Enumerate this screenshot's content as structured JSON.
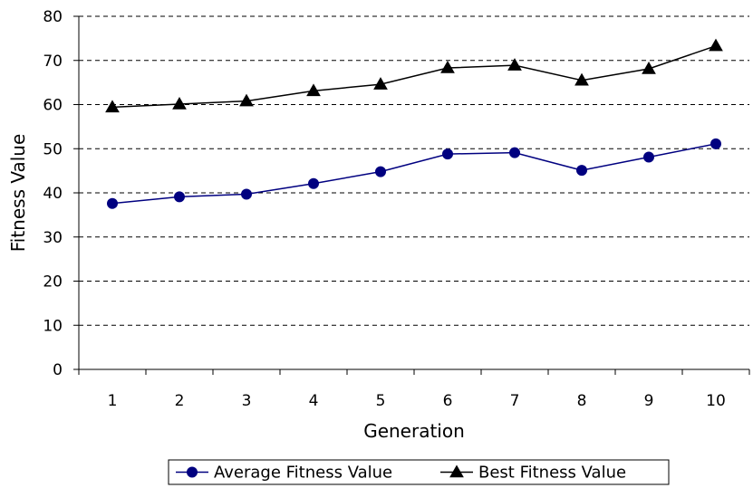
{
  "chart_data": {
    "type": "line",
    "title": "",
    "xlabel": "Generation",
    "ylabel": "Fitness Value",
    "categories": [
      "1",
      "2",
      "3",
      "4",
      "5",
      "6",
      "7",
      "8",
      "9",
      "10"
    ],
    "ylim": [
      0,
      80
    ],
    "yticks": [
      0,
      10,
      20,
      30,
      40,
      50,
      60,
      70,
      80
    ],
    "grid": "horizontal-dashed",
    "legend_position": "bottom",
    "series": [
      {
        "name": "Average Fitness Value",
        "values": [
          37.6,
          39.1,
          39.7,
          42.1,
          44.8,
          48.8,
          49.1,
          45.1,
          48.1,
          51.1
        ],
        "color": "#000080",
        "marker": "circle"
      },
      {
        "name": "Best Fitness Value",
        "values": [
          59.4,
          60.1,
          60.8,
          63.1,
          64.6,
          68.3,
          68.9,
          65.5,
          68.1,
          73.3
        ],
        "color": "#000000",
        "marker": "triangle"
      }
    ]
  }
}
